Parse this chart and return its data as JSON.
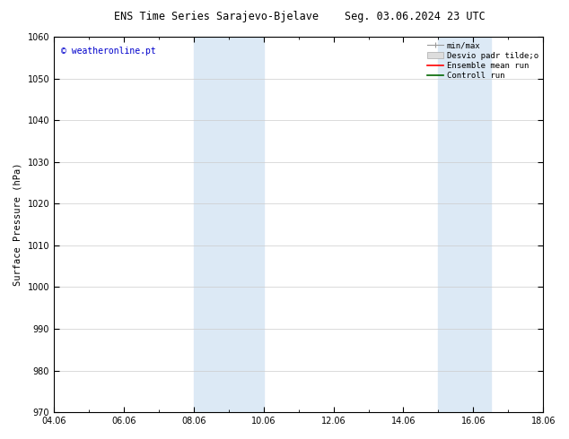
{
  "title_left": "ENS Time Series Sarajevo-Bjelave",
  "title_right": "Seg. 03.06.2024 23 UTC",
  "ylabel": "Surface Pressure (hPa)",
  "watermark": "© weatheronline.pt",
  "watermark_color": "#0000cc",
  "ylim": [
    970,
    1060
  ],
  "yticks": [
    970,
    980,
    990,
    1000,
    1010,
    1020,
    1030,
    1040,
    1050,
    1060
  ],
  "xlim": [
    0,
    14
  ],
  "xtick_labels": [
    "04.06",
    "06.06",
    "08.06",
    "10.06",
    "12.06",
    "14.06",
    "16.06",
    "18.06"
  ],
  "xtick_positions": [
    0,
    2,
    4,
    6,
    8,
    10,
    12,
    14
  ],
  "shaded_bands": [
    {
      "x_start": 4.0,
      "x_end": 6.0
    },
    {
      "x_start": 11.0,
      "x_end": 12.5
    }
  ],
  "shade_color": "#dce9f5",
  "grid_color": "#cccccc",
  "background_color": "#ffffff",
  "title_fontsize": 8.5,
  "tick_fontsize": 7.0,
  "ylabel_fontsize": 7.5,
  "watermark_fontsize": 7.0,
  "legend_fontsize": 6.5
}
